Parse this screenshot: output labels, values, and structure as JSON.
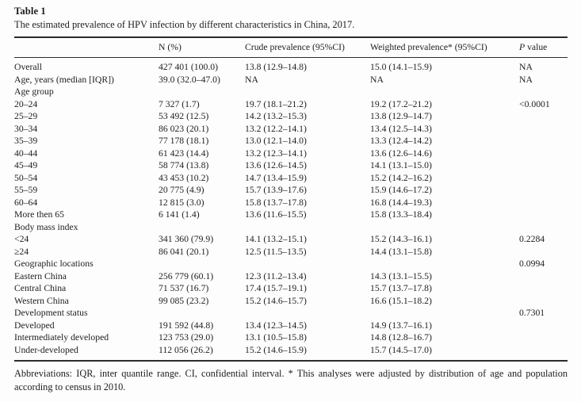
{
  "table1": {
    "label": "Table 1",
    "caption": "The estimated prevalence of HPV infection by different characteristics in China, 2017.",
    "columns": [
      "",
      "N (%)",
      "Crude prevalence (95%CI)",
      "Weighted prevalence* (95%CI)",
      "P value"
    ],
    "rows": [
      {
        "label": "Overall",
        "n": "427 401 (100.0)",
        "crude": "13.8 (12.9–14.8)",
        "weighted": "15.0 (14.1–15.9)",
        "p": "NA"
      },
      {
        "label": "Age, years (median [IQR])",
        "n": "39.0 (32.0–47.0)",
        "crude": "NA",
        "weighted": "NA",
        "p": "NA"
      },
      {
        "label": "Age group",
        "n": "",
        "crude": "",
        "weighted": "",
        "p": ""
      },
      {
        "label": "20–24",
        "n": "7 327 (1.7)",
        "crude": "19.7 (18.1–21.2)",
        "weighted": "19.2 (17.2–21.2)",
        "p": "<0.0001"
      },
      {
        "label": "25–29",
        "n": "53 492 (12.5)",
        "crude": "14.2 (13.2–15.3)",
        "weighted": "13.8 (12.9–14.7)",
        "p": ""
      },
      {
        "label": "30–34",
        "n": "86 023 (20.1)",
        "crude": "13.2 (12.2–14.1)",
        "weighted": "13.4 (12.5–14.3)",
        "p": ""
      },
      {
        "label": "35–39",
        "n": "77 178 (18.1)",
        "crude": "13.0 (12.1–14.0)",
        "weighted": "13.3 (12.4–14.2)",
        "p": ""
      },
      {
        "label": "40–44",
        "n": "61 423 (14.4)",
        "crude": "13.2 (12.3–14.1)",
        "weighted": "13.6 (12.6–14.6)",
        "p": ""
      },
      {
        "label": "45–49",
        "n": "58 774 (13.8)",
        "crude": "13.6 (12.6–14.5)",
        "weighted": "14.1 (13.1–15.0)",
        "p": ""
      },
      {
        "label": "50–54",
        "n": "43 453 (10.2)",
        "crude": "14.7 (13.4–15.9)",
        "weighted": "15.2 (14.2–16.2)",
        "p": ""
      },
      {
        "label": "55–59",
        "n": "20 775 (4.9)",
        "crude": "15.7 (13.9–17.6)",
        "weighted": "15.9 (14.6–17.2)",
        "p": ""
      },
      {
        "label": "60–64",
        "n": "12 815 (3.0)",
        "crude": "15.8 (13.7–17.8)",
        "weighted": "16.8 (14.4–19.3)",
        "p": ""
      },
      {
        "label": "More then 65",
        "n": "6 141 (1.4)",
        "crude": "13.6 (11.6–15.5)",
        "weighted": "15.8 (13.3–18.4)",
        "p": ""
      },
      {
        "label": "Body mass index",
        "n": "",
        "crude": "",
        "weighted": "",
        "p": ""
      },
      {
        "label": "<24",
        "n": "341 360 (79.9)",
        "crude": "14.1 (13.2–15.1)",
        "weighted": "15.2 (14.3–16.1)",
        "p": "0.2284"
      },
      {
        "label": "≥24",
        "n": "86 041 (20.1)",
        "crude": "12.5 (11.5–13.5)",
        "weighted": "14.4 (13.1–15.8)",
        "p": ""
      },
      {
        "label": "Geographic locations",
        "n": "",
        "crude": "",
        "weighted": "",
        "p": "0.0994"
      },
      {
        "label": "Eastern China",
        "n": "256 779 (60.1)",
        "crude": "12.3 (11.2–13.4)",
        "weighted": "14.3 (13.1–15.5)",
        "p": ""
      },
      {
        "label": "Central China",
        "n": "71 537 (16.7)",
        "crude": "17.4 (15.7–19.1)",
        "weighted": "15.7 (13.7–17.8)",
        "p": ""
      },
      {
        "label": "Western China",
        "n": "99 085 (23.2)",
        "crude": "15.2 (14.6–15.7)",
        "weighted": "16.6 (15.1–18.2)",
        "p": ""
      },
      {
        "label": "Development status",
        "n": "",
        "crude": "",
        "weighted": "",
        "p": "0.7301"
      },
      {
        "label": "Developed",
        "n": "191 592 (44.8)",
        "crude": "13.4 (12.3–14.5)",
        "weighted": "14.9 (13.7–16.1)",
        "p": ""
      },
      {
        "label": "Intermediately developed",
        "n": "123 753 (29.0)",
        "crude": "13.1 (10.5–15.8)",
        "weighted": "14.8 (12.8–16.7)",
        "p": ""
      },
      {
        "label": "Under-developed",
        "n": "112 056 (26.2)",
        "crude": "15.2 (14.6–15.9)",
        "weighted": "15.7 (14.5–17.0)",
        "p": ""
      }
    ],
    "footnote": "Abbreviations: IQR, inter quantile range. CI, confidential interval. * This analyses were adjusted by distribution of age and population according to census in 2010."
  }
}
